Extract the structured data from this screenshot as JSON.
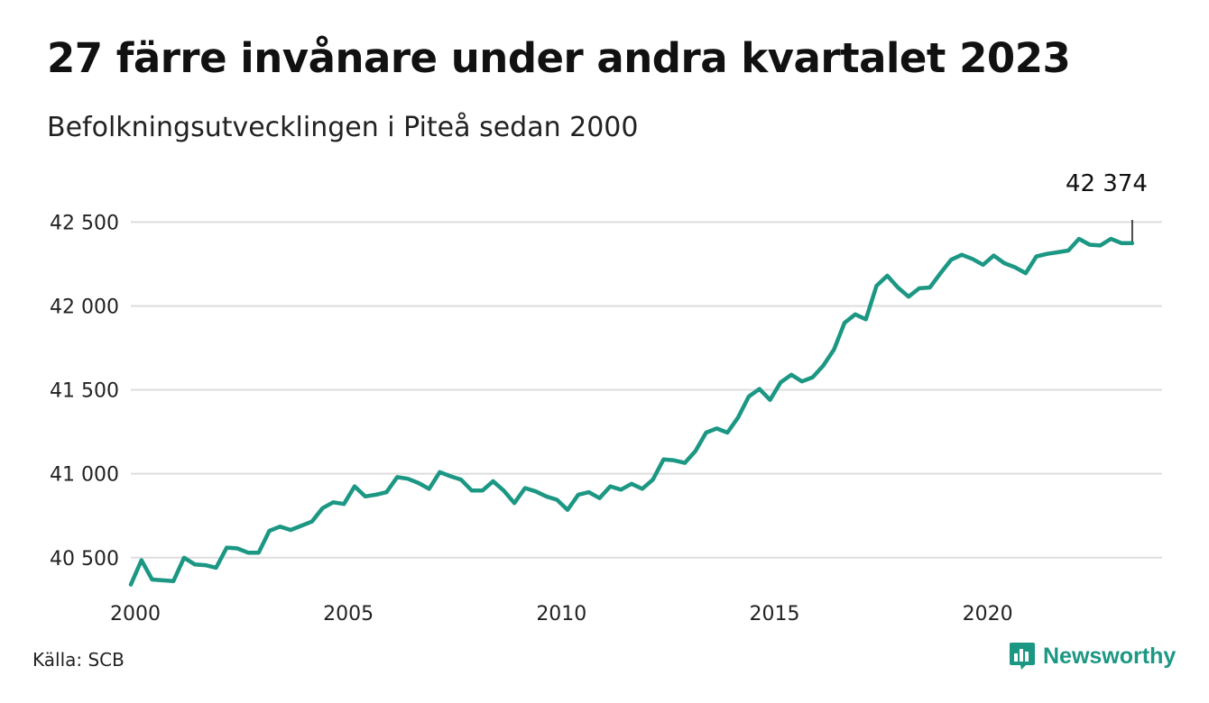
{
  "title": "27 färre invånare under andra kvartalet 2023",
  "subtitle": "Befolkningsutvecklingen i Piteå sedan 2000",
  "source": "Källa: SCB",
  "brand": {
    "name": "Newsworthy",
    "icon": "bar-chart-speech-bubble-icon",
    "color": "#1b9783"
  },
  "colors": {
    "line": "#1b9783",
    "grid": "#dddddd",
    "text": "#111111"
  },
  "chart_data": {
    "type": "line",
    "grid": true,
    "legend": "none",
    "x_unit": "year",
    "xlim": [
      2000,
      2024.2
    ],
    "ylim": [
      40300,
      42620
    ],
    "x_ticks": [
      2000,
      2005,
      2010,
      2015,
      2020
    ],
    "x_tick_labels": [
      "2000",
      "2005",
      "2010",
      "2015",
      "2020"
    ],
    "y_ticks": [
      40500,
      41000,
      41500,
      42000,
      42500
    ],
    "y_tick_labels": [
      "40 500",
      "41 000",
      "41 500",
      "42 000",
      "42 500"
    ],
    "annotation": {
      "x": 2023.5,
      "y": 42374,
      "label": "42 374"
    },
    "series": [
      {
        "x": [
          2000.0,
          2000.25,
          2000.5,
          2000.75,
          2001.0,
          2001.25,
          2001.5,
          2001.75,
          2002.0,
          2002.25,
          2002.5,
          2002.75,
          2003.0,
          2003.25,
          2003.5,
          2003.75,
          2004.0,
          2004.25,
          2004.5,
          2004.75,
          2005.0,
          2005.25,
          2005.5,
          2005.75,
          2006.0,
          2006.25,
          2006.5,
          2006.75,
          2007.0,
          2007.25,
          2007.5,
          2007.75,
          2008.0,
          2008.25,
          2008.5,
          2008.75,
          2009.0,
          2009.25,
          2009.5,
          2009.75,
          2010.0,
          2010.25,
          2010.5,
          2010.75,
          2011.0,
          2011.25,
          2011.5,
          2011.75,
          2012.0,
          2012.25,
          2012.5,
          2012.75,
          2013.0,
          2013.25,
          2013.5,
          2013.75,
          2014.0,
          2014.25,
          2014.5,
          2014.75,
          2015.0,
          2015.25,
          2015.5,
          2015.75,
          2016.0,
          2016.25,
          2016.5,
          2016.75,
          2017.0,
          2017.25,
          2017.5,
          2017.75,
          2018.0,
          2018.25,
          2018.5,
          2018.75,
          2019.0,
          2019.25,
          2019.5,
          2019.75,
          2020.0,
          2020.25,
          2020.5,
          2020.75,
          2021.0,
          2021.25,
          2021.5,
          2021.75,
          2022.0,
          2022.25,
          2022.5,
          2022.75,
          2023.0,
          2023.25,
          2023.5
        ],
        "values": [
          40340,
          40485,
          40370,
          40365,
          40360,
          40500,
          40460,
          40455,
          40440,
          40560,
          40555,
          40530,
          40530,
          40660,
          40685,
          40665,
          40690,
          40715,
          40795,
          40830,
          40820,
          40925,
          40865,
          40875,
          40890,
          40980,
          40970,
          40945,
          40910,
          41010,
          40985,
          40965,
          40900,
          40900,
          40955,
          40900,
          40825,
          40915,
          40895,
          40865,
          40845,
          40785,
          40875,
          40890,
          40855,
          40925,
          40905,
          40940,
          40910,
          40965,
          41085,
          41080,
          41065,
          41135,
          41245,
          41270,
          41245,
          41335,
          41460,
          41505,
          41440,
          41545,
          41590,
          41550,
          41575,
          41645,
          41740,
          41900,
          41950,
          41920,
          42120,
          42180,
          42110,
          42055,
          42105,
          42110,
          42195,
          42275,
          42305,
          42280,
          42245,
          42300,
          42255,
          42230,
          42195,
          42295,
          42310,
          42320,
          42330,
          42400,
          42365,
          42360,
          42400,
          42374,
          42374
        ]
      }
    ]
  }
}
